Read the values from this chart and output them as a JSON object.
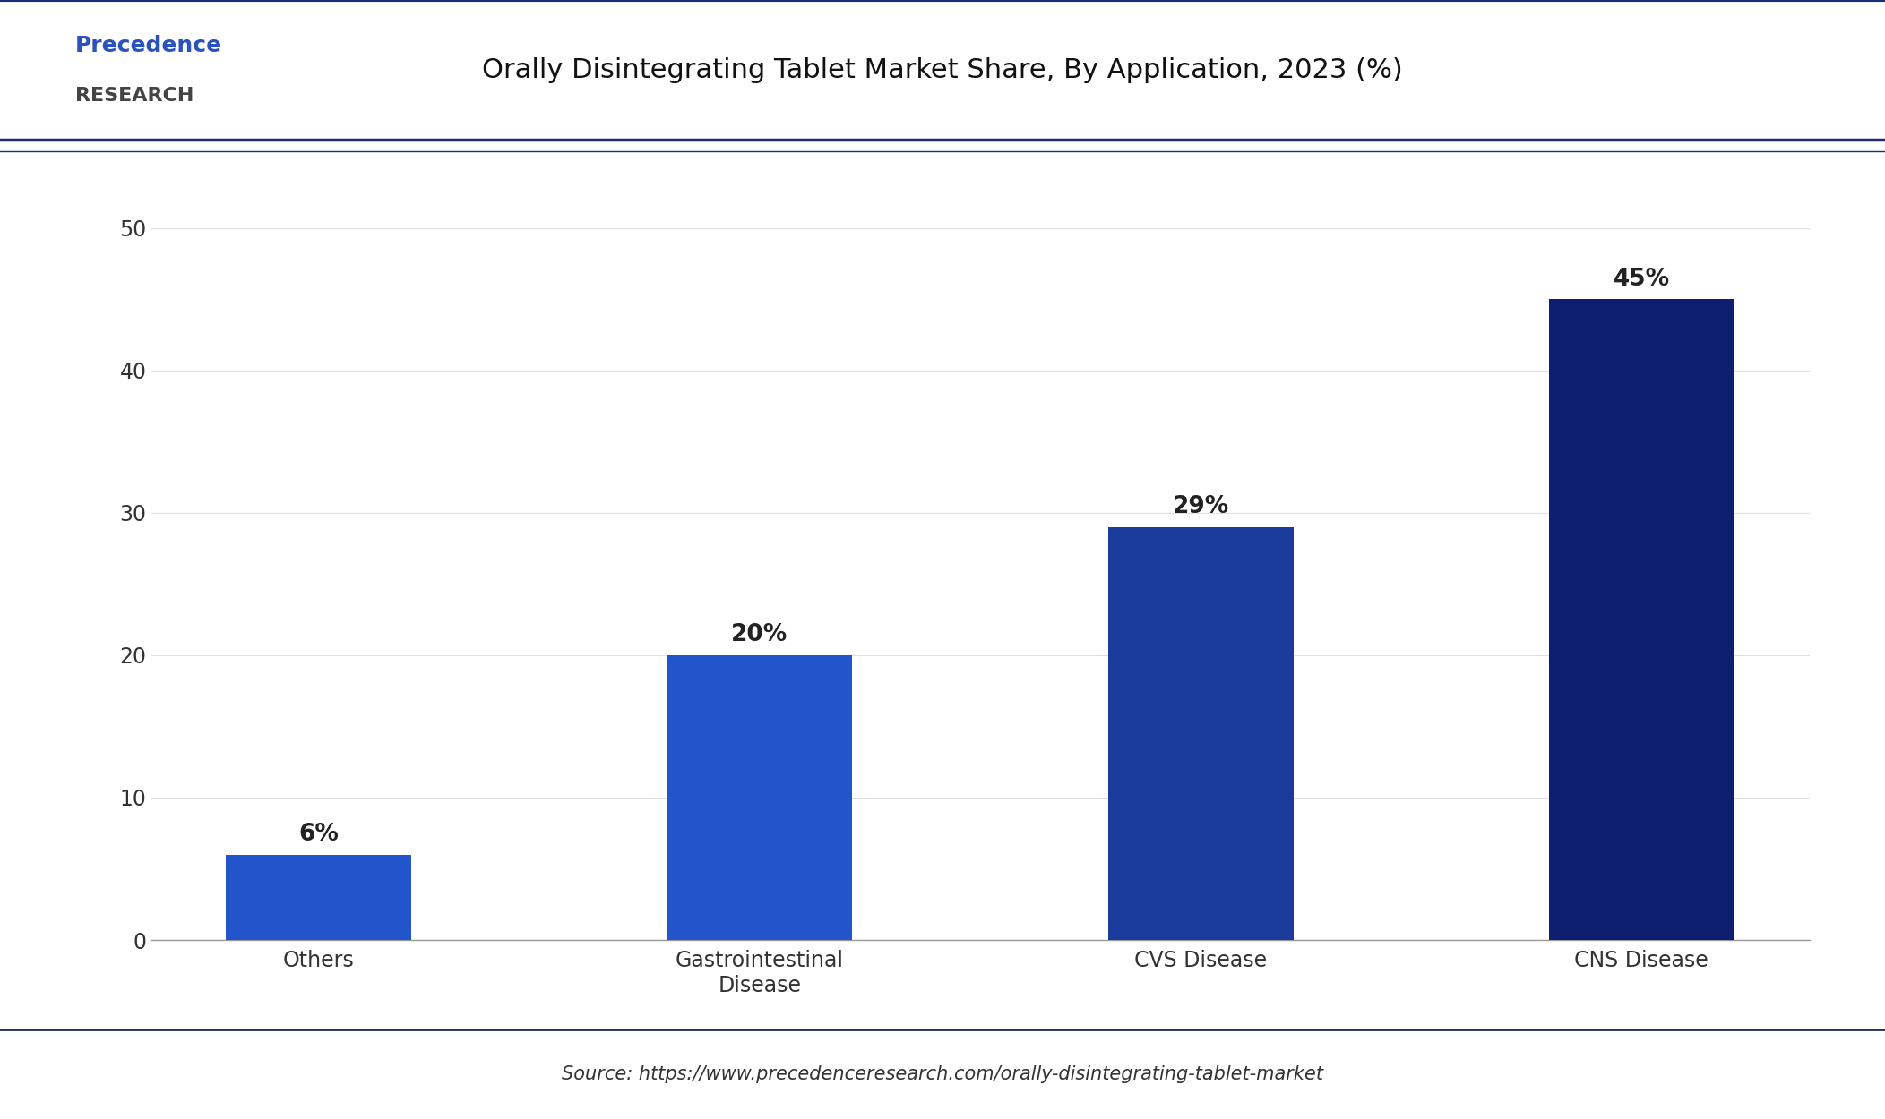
{
  "title": "Orally Disintegrating Tablet Market Share, By Application, 2023 (%)",
  "categories": [
    "Others",
    "Gastrointestinal\nDisease",
    "CVS Disease",
    "CNS Disease"
  ],
  "values": [
    6,
    20,
    29,
    45
  ],
  "labels": [
    "6%",
    "20%",
    "29%",
    "45%"
  ],
  "bar_colors": [
    "#2255cc",
    "#2255cc",
    "#1a3a9c",
    "#0d1f6e"
  ],
  "ylim": [
    0,
    55
  ],
  "yticks": [
    0,
    10,
    20,
    30,
    40,
    50
  ],
  "background_color": "#ffffff",
  "plot_bg_color": "#ffffff",
  "source_text": "Source: https://www.precedenceresearch.com/orally-disintegrating-tablet-market",
  "title_fontsize": 22,
  "tick_fontsize": 17,
  "label_fontsize": 19,
  "source_fontsize": 15,
  "logo_line_color": "#1a2f6e",
  "border_line_color": "#1a2f6e",
  "bottom_line_color": "#1a2f6e",
  "grid_color": "#e0e0e0"
}
